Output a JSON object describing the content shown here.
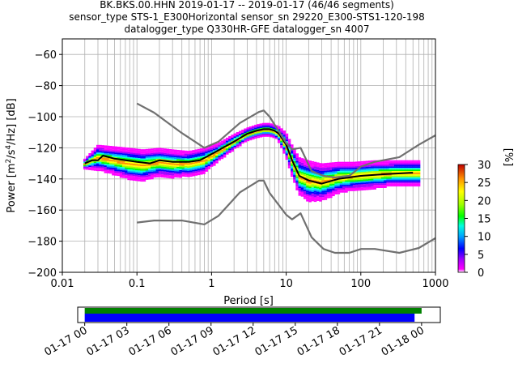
{
  "title": {
    "line1": "BK.BKS.00.HHN   2019-01-17 -- 2019-01-17  (46/46 segments)",
    "line2": "sensor_type STS-1_E300Horizontal sensor_sn 29220_E300-STS1-120-198",
    "line3": "datalogger_type Q330HR-GFE datalogger_sn 4007"
  },
  "chart_data": [
    {
      "type": "heatmap",
      "subtype": "ppsd",
      "xlabel": "Period [s]",
      "ylabel": "Power [m²/s⁴/Hz] [dB]",
      "ylabel_parts": {
        "main": "Power [m",
        "sup1": "2",
        "mid": "/s",
        "sup2": "4",
        "end": "/Hz] [dB]"
      },
      "xscale": "log",
      "xlim": [
        0.01,
        1000
      ],
      "ylim": [
        -200,
        -50
      ],
      "xticks": [
        0.01,
        0.1,
        1,
        10,
        100,
        1000
      ],
      "xticklabels": [
        "0.01",
        "0.1",
        "1",
        "10",
        "100",
        "1000"
      ],
      "yticks": [
        -200,
        -180,
        -160,
        -140,
        -120,
        -100,
        -80,
        -60
      ],
      "yticklabels": [
        "−200",
        "−180",
        "−160",
        "−140",
        "−120",
        "−100",
        "−80",
        "−60"
      ],
      "grid": true,
      "colorbar": {
        "label": "[%]",
        "range": [
          0,
          30
        ],
        "ticks": [
          0,
          5,
          10,
          15,
          20,
          25,
          30
        ],
        "ticklabels": [
          "0",
          "5",
          "10",
          "15",
          "20",
          "25",
          "30"
        ],
        "colormap": "pqlx"
      },
      "series": [
        {
          "name": "",
          "role": "mode",
          "color": "#000000",
          "x": [
            0.02,
            0.025,
            0.03,
            0.035,
            0.05,
            0.1,
            0.15,
            0.2,
            0.3,
            0.5,
            0.7,
            1,
            2,
            3,
            4,
            5,
            6,
            7,
            8,
            10,
            12,
            15,
            20,
            30,
            50,
            100,
            200,
            500
          ],
          "y": [
            -130,
            -128,
            -128,
            -125,
            -127,
            -129,
            -130,
            -128,
            -129,
            -129,
            -128,
            -124,
            -116,
            -111,
            -109,
            -108,
            -108,
            -109,
            -111,
            -118,
            -128,
            -138,
            -141,
            -143,
            -140,
            -138,
            -137,
            -136
          ]
        },
        {
          "name": "",
          "role": "model_high",
          "color": "#707070",
          "x": [
            0.1,
            0.17,
            0.4,
            0.8,
            1.24,
            2.4,
            4.3,
            5.0,
            6.0,
            10,
            12,
            15.6,
            21.9,
            31.6,
            45,
            70,
            101,
            154,
            328,
            600,
            1000
          ],
          "y": [
            -91.5,
            -97.4,
            -110.5,
            -120,
            -116,
            -104,
            -97,
            -96,
            -100,
            -117,
            -121,
            -120,
            -135,
            -138,
            -139,
            -138,
            -132,
            -129,
            -126,
            -118,
            -112
          ]
        },
        {
          "name": "",
          "role": "model_low",
          "color": "#707070",
          "x": [
            0.1,
            0.17,
            0.4,
            0.8,
            1.24,
            2.4,
            4.3,
            5.0,
            6.0,
            10,
            12,
            15.6,
            21.9,
            31.6,
            45,
            70,
            101,
            154,
            328,
            600,
            1000
          ],
          "y": [
            -168,
            -166.7,
            -166.7,
            -169.2,
            -163.7,
            -148.6,
            -141.1,
            -141.1,
            -149,
            -163,
            -166,
            -162.1,
            -177.5,
            -185,
            -187.5,
            -187.5,
            -185,
            -185,
            -187.5,
            -184.4,
            -178
          ]
        }
      ],
      "density": {
        "note": "probability density of power per period bin, in %",
        "x": [
          0.02,
          0.03,
          0.05,
          0.08,
          0.12,
          0.2,
          0.3,
          0.5,
          0.8,
          1.2,
          2,
          3,
          4,
          5,
          6,
          7,
          8,
          10,
          12,
          15,
          20,
          30,
          50,
          80,
          150,
          300,
          600
        ],
        "center": [
          -130,
          -126,
          -128,
          -130,
          -131,
          -129,
          -130,
          -130,
          -128,
          -123,
          -116,
          -111,
          -109,
          -108,
          -108,
          -109,
          -111,
          -118,
          -128,
          -138,
          -141,
          -142,
          -139,
          -138,
          -137,
          -136,
          -136
        ],
        "spread": [
          3,
          8,
          9,
          10,
          10,
          9,
          9,
          8,
          8,
          6,
          5,
          4,
          4,
          4,
          4,
          4,
          5,
          8,
          10,
          12,
          13,
          12,
          10,
          9,
          9,
          8,
          8
        ]
      }
    },
    {
      "type": "timeline",
      "subtype": "data_availability",
      "xticklabels": [
        "01-17 00",
        "01-17 03",
        "01-17 06",
        "01-17 09",
        "01-17 12",
        "01-17 15",
        "01-17 18",
        "01-17 21",
        "01-18 00"
      ],
      "xlim": [
        "01-16 23:30",
        "01-18 01:20"
      ],
      "bars": [
        {
          "role": "available",
          "color": "#008000",
          "start": "01-17 00:00",
          "end": "01-18 00:00"
        },
        {
          "role": "used",
          "color": "#0000ff",
          "start": "01-17 00:00",
          "end": "01-17 23:30"
        }
      ]
    }
  ]
}
